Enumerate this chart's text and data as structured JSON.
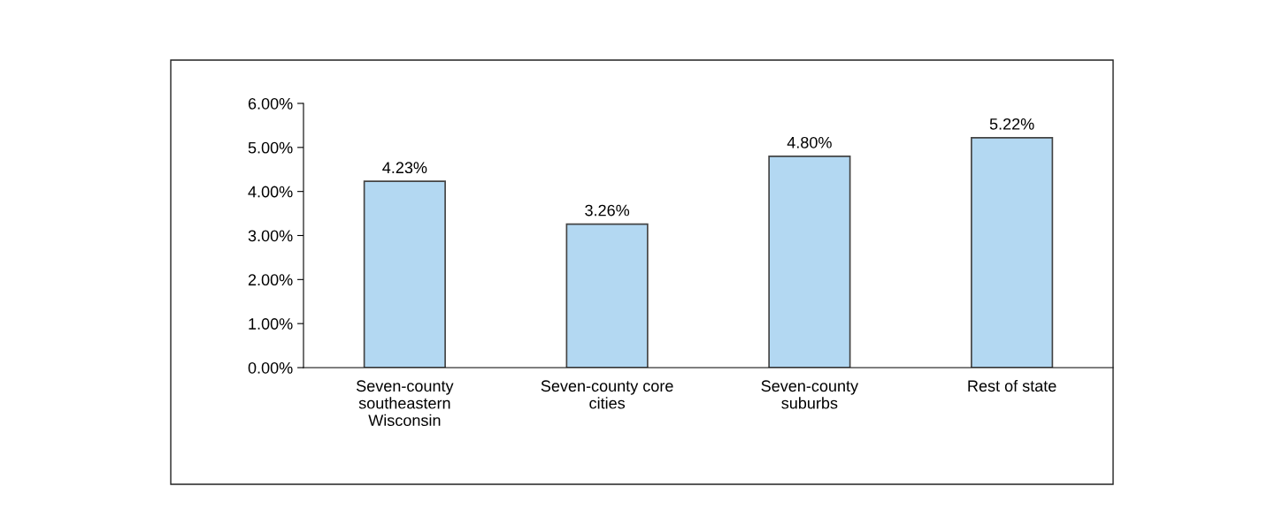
{
  "chart_data": {
    "type": "bar",
    "categories": [
      "Seven-county southeastern Wisconsin",
      "Seven-county core cities",
      "Seven-county suburbs",
      "Rest of state"
    ],
    "values": [
      4.23,
      3.26,
      4.8,
      5.22
    ],
    "value_labels": [
      "4.23%",
      "3.26%",
      "4.80%",
      "5.22%"
    ],
    "color": "#b3d8f2",
    "ylim": [
      0,
      6
    ],
    "yticks": [
      {
        "value": 0,
        "label": "0.00%"
      },
      {
        "value": 1,
        "label": "1.00%"
      },
      {
        "value": 2,
        "label": "2.00%"
      },
      {
        "value": 3,
        "label": "3.00%"
      },
      {
        "value": 4,
        "label": "4.00%"
      },
      {
        "value": 5,
        "label": "5.00%"
      },
      {
        "value": 6,
        "label": "6.00%"
      }
    ],
    "grid": false,
    "legend": false
  }
}
